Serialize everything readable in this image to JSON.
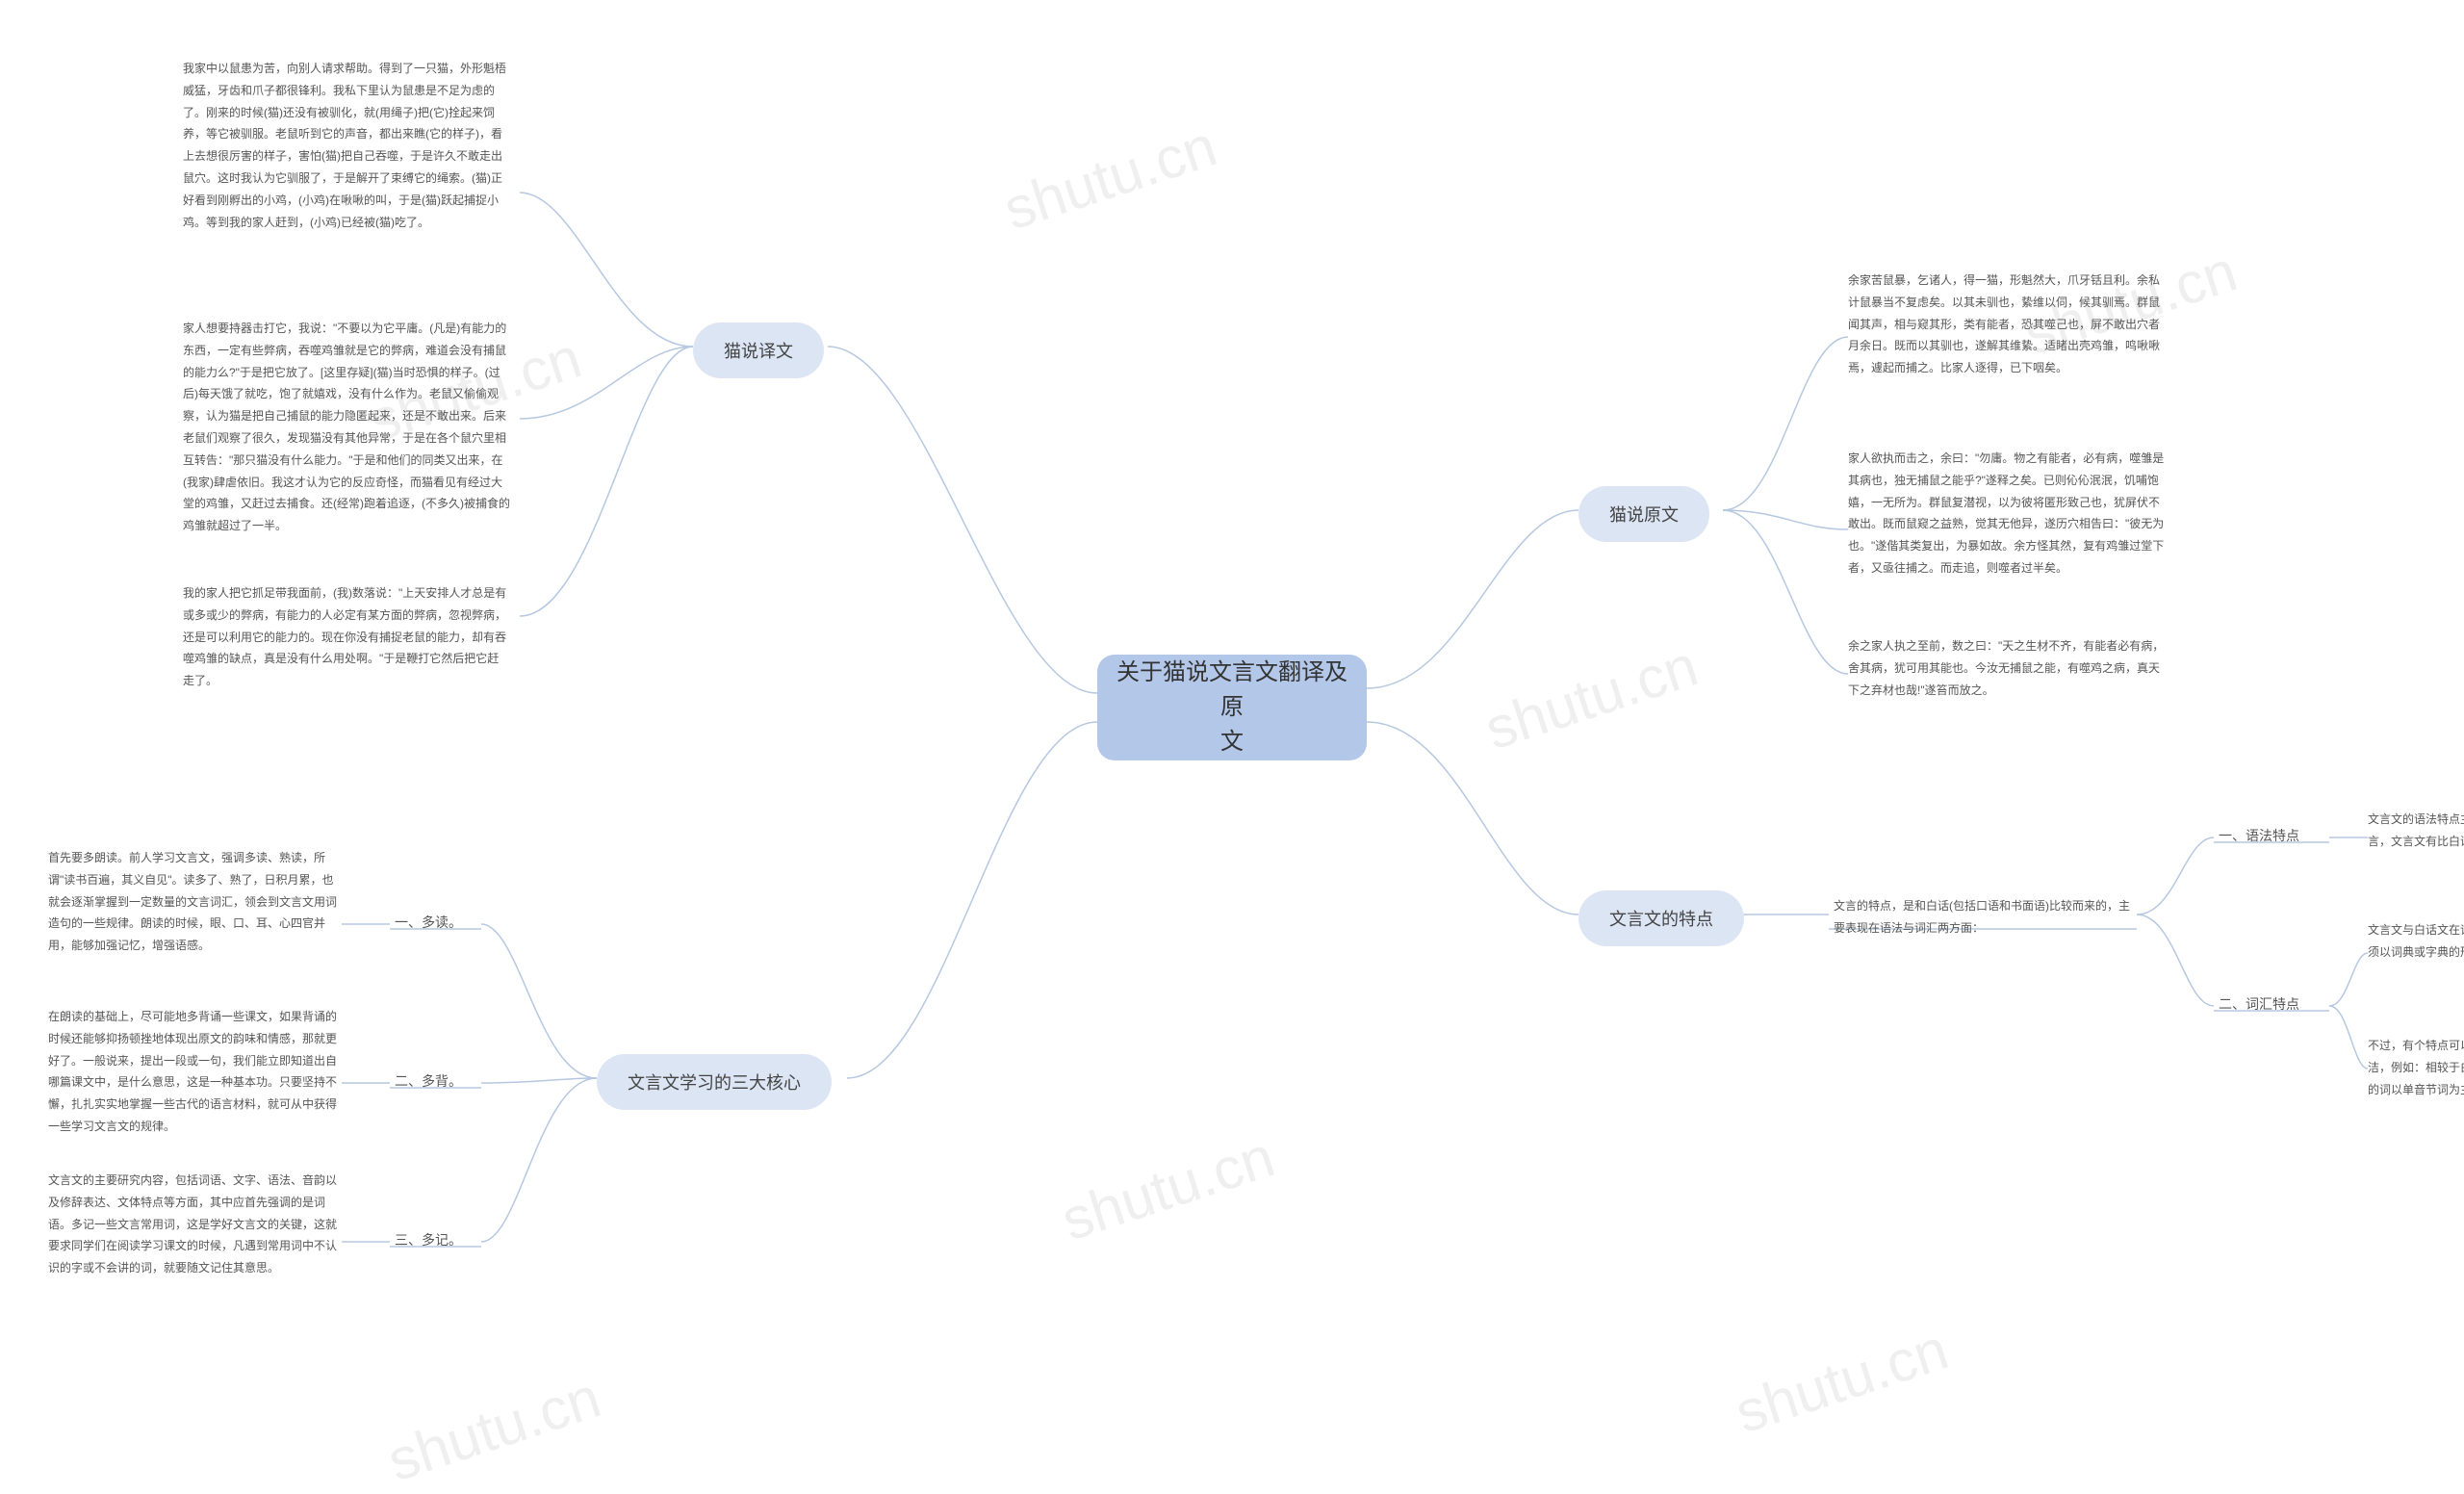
{
  "center": {
    "title": "关于猫说文言文翻译及原\n文"
  },
  "watermark": "shutu.cn",
  "branches": {
    "translation": {
      "label": "猫说译文",
      "items": [
        "我家中以鼠患为苦，向别人请求帮助。得到了一只猫，外形魁梧威猛，牙齿和爪子都很锋利。我私下里认为鼠患是不足为虑的了。刚来的时候(猫)还没有被驯化，就(用绳子)把(它)拴起来饲养，等它被驯服。老鼠听到它的声音，都出来瞧(它的样子)，看上去想很厉害的样子，害怕(猫)把自己吞噬，于是许久不敢走出鼠穴。这时我认为它驯服了，于是解开了束缚它的绳索。(猫)正好看到刚孵出的小鸡，(小鸡)在啾啾的叫，于是(猫)跃起捕捉小鸡。等到我的家人赶到，(小鸡)已经被(猫)吃了。",
        "家人想要持器击打它，我说：\"不要以为它平庸。(凡是)有能力的东西，一定有些弊病，吞噬鸡雏就是它的弊病，难道会没有捕鼠的能力么?\"于是把它放了。[这里存疑](猫)当时恐惧的样子。(过后)每天饿了就吃，饱了就嬉戏，没有什么作为。老鼠又偷偷观察，认为猫是把自己捕鼠的能力隐匿起来，还是不敢出来。后来老鼠们观察了很久，发现猫没有其他异常，于是在各个鼠穴里相互转告：\"那只猫没有什么能力。\"于是和他们的同类又出来，在(我家)肆虐依旧。我这才认为它的反应奇怪，而猫看见有经过大堂的鸡雏，又赶过去捕食。还(经常)跑着追逐，(不多久)被捕食的鸡雏就超过了一半。",
        "我的家人把它抓足带我面前，(我)数落说：\"上天安排人才总是有或多或少的弊病，有能力的人必定有某方面的弊病，忽视弊病，还是可以利用它的能力的。现在你没有捕捉老鼠的能力，却有吞噬鸡雏的缺点，真是没有什么用处啊。\"于是鞭打它然后把它赶走了。"
      ]
    },
    "original": {
      "label": "猫说原文",
      "items": [
        "余家苦鼠暴，乞诸人，得一猫，形魁然大，爪牙铦且利。余私计鼠暴当不复虑矣。以其未驯也，絷维以伺，候其驯焉。群鼠闻其声，相与窥其形，类有能者，恐其噬己也，屏不敢出穴者月余日。既而以其驯也，遂解其维絷。适睹出壳鸡雏，鸣啾啾焉，遽起而捕之。比家人逐得，已下咽矣。",
        "家人欲执而击之，余曰：\"勿庸。物之有能者，必有病，噬雏是其病也，独无捕鼠之能乎?\"遂释之矣。已则伈伈泯泯，饥哺饱嬉，一无所为。群鼠复潜视，以为彼将匿形致己也，犹屏伏不敢出。既而鼠窥之益熟，觉其无他异，遂历穴相告曰：\"彼无为也。\"遂偕其类复出，为暴如故。余方怪其然，复有鸡雏过堂下者，又亟往捕之。而走追，则噬者过半矣。",
        "余之家人执之至前，数之曰：\"天之生材不齐，有能者必有病，舍其病，犹可用其能也。今汝无捕鼠之能，有噬鸡之病，真天下之弃材也哉!\"遂笞而放之。"
      ]
    },
    "features": {
      "label": "文言文的特点",
      "intro": "文言的特点，是和白话(包括口语和书面语)比较而来的，主要表现在语法与词汇两方面：",
      "items": [
        {
          "label": "一、语法特点",
          "texts": [
            "文言文的语法特点主要表现在词类及词序两方面。一般而言，文言文有比白话更多的词类活用现象。"
          ]
        },
        {
          "label": "二、词汇特点",
          "texts": [
            "文言文与白话文在词汇上有很大的差异。这个差异通常必须以词典或字典的形式加以条列，才能完整表达。",
            "不过，有个特点可以概括性地观察：文言文的词汇较为简洁，例如：相较于白话文的词以双音节词为主，文言文中的词以单音节词为主。"
          ]
        }
      ]
    },
    "learning": {
      "label": "文言文学习的三大核心",
      "items": [
        {
          "label": "一、多读。",
          "text": "首先要多朗读。前人学习文言文，强调多读、熟读，所谓\"读书百遍，其义自见\"。读多了、熟了，日积月累，也就会逐渐掌握到一定数量的文言词汇，领会到文言文用词造句的一些规律。朗读的时候，眼、口、耳、心四官并用，能够加强记忆，增强语感。"
        },
        {
          "label": "二、多背。",
          "text": "在朗读的基础上，尽可能地多背诵一些课文，如果背诵的时候还能够抑扬顿挫地体现出原文的韵味和情感，那就更好了。一般说来，提出一段或一句，我们能立即知道出自哪篇课文中，是什么意思，这是一种基本功。只要坚持不懈，扎扎实实地掌握一些古代的语言材料，就可从中获得一些学习文言文的规律。"
        },
        {
          "label": "三、多记。",
          "text": "文言文的主要研究内容，包括词语、文字、语法、音韵以及修辞表达、文体特点等方面，其中应首先强调的是词语。多记一些文言常用词，这是学好文言文的关键，这就要求同学们在阅读学习课文的时候，凡遇到常用词中不认识的字或不会讲的词，就要随文记住其意思。"
        }
      ]
    }
  },
  "colors": {
    "center_bg": "#b3c7e8",
    "branch_bg": "#dce5f4",
    "line": "#b6c8e0",
    "text": "#555555",
    "bg": "#ffffff"
  }
}
